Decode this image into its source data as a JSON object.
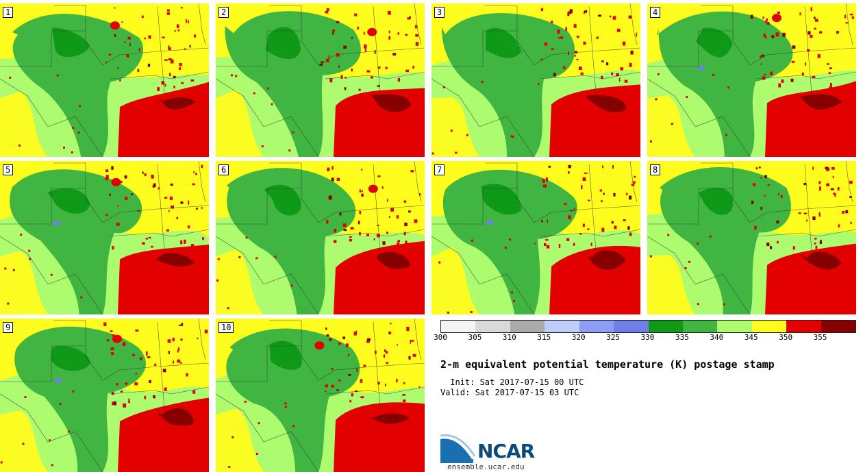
{
  "panels": [
    {
      "label": "1"
    },
    {
      "label": "2"
    },
    {
      "label": "3"
    },
    {
      "label": "4"
    },
    {
      "label": "5"
    },
    {
      "label": "6"
    },
    {
      "label": "7"
    },
    {
      "label": "8"
    },
    {
      "label": "9"
    },
    {
      "label": "10"
    }
  ],
  "colorbar": {
    "ticks": [
      "300",
      "305",
      "310",
      "315",
      "320",
      "325",
      "330",
      "335",
      "340",
      "345",
      "350",
      "355"
    ],
    "colors": [
      "#f4f4f4",
      "#d9d9d9",
      "#aaaaaa",
      "#bfcdfb",
      "#8b9ef4",
      "#6e7fe8",
      "#0e9a16",
      "#41b541",
      "#adfb6e",
      "#fffd1e",
      "#e20000",
      "#860000"
    ]
  },
  "title": "2-m equivalent potential temperature (K) postage stamp",
  "init": " Init: Sat 2017-07-15 00 UTC",
  "valid": "Valid: Sat 2017-07-15 03 UTC",
  "logo": {
    "text": "NCAR",
    "url": "ensemble.ucar.edu"
  }
}
